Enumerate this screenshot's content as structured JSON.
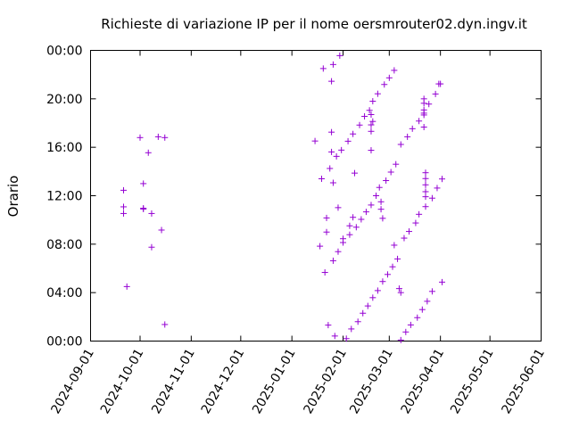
{
  "chart_data": {
    "type": "scatter",
    "title": "Richieste di variazione IP per il nome oersmrouter02.dyn.ingv.it",
    "xlabel": "",
    "ylabel": "Orario",
    "x_ticks": [
      "2024-09-01",
      "2024-10-01",
      "2024-11-01",
      "2024-12-01",
      "2025-01-01",
      "2025-02-01",
      "2025-03-01",
      "2025-04-01",
      "2025-05-01",
      "2025-06-01"
    ],
    "y_ticks": [
      "00:00",
      "04:00",
      "08:00",
      "12:00",
      "16:00",
      "20:00",
      "00:00"
    ],
    "xlim": [
      "2024-09-01",
      "2025-06-01"
    ],
    "ylim_hours": [
      0,
      24
    ],
    "marker": "+",
    "grid": false,
    "color": "#9400d3",
    "series": [
      {
        "points": [
          [
            "2024-09-21",
            "12:27"
          ],
          [
            "2024-09-21",
            "11:05"
          ],
          [
            "2024-09-21",
            "10:32"
          ],
          [
            "2024-09-23",
            "04:30"
          ],
          [
            "2024-10-01",
            "16:48"
          ],
          [
            "2024-10-03",
            "13:00"
          ],
          [
            "2024-10-03",
            "10:54"
          ],
          [
            "2024-10-03",
            "10:58"
          ],
          [
            "2024-10-06",
            "15:33"
          ],
          [
            "2024-10-08",
            "10:32"
          ],
          [
            "2024-10-08",
            "07:45"
          ],
          [
            "2024-10-12",
            "16:52"
          ],
          [
            "2024-10-14",
            "09:10"
          ],
          [
            "2024-10-16",
            "01:22"
          ],
          [
            "2024-10-16",
            "16:48"
          ],
          [
            "2025-01-15",
            "16:31"
          ],
          [
            "2025-01-18",
            "07:50"
          ],
          [
            "2025-01-19",
            "13:24"
          ],
          [
            "2025-01-20",
            "22:30"
          ],
          [
            "2025-01-21",
            "05:40"
          ],
          [
            "2025-01-22",
            "09:00"
          ],
          [
            "2025-01-22",
            "10:10"
          ],
          [
            "2025-01-23",
            "01:19"
          ],
          [
            "2025-01-24",
            "14:15"
          ],
          [
            "2025-01-25",
            "21:27"
          ],
          [
            "2025-01-25",
            "17:15"
          ],
          [
            "2025-01-25",
            "15:37"
          ],
          [
            "2025-01-26",
            "13:04"
          ],
          [
            "2025-01-26",
            "06:38"
          ],
          [
            "2025-01-26",
            "22:50"
          ],
          [
            "2025-01-27",
            "00:25"
          ],
          [
            "2025-01-28",
            "15:15"
          ],
          [
            "2025-01-29",
            "11:01"
          ],
          [
            "2025-01-29",
            "07:23"
          ],
          [
            "2025-01-30",
            "23:34"
          ],
          [
            "2025-01-31",
            "15:46"
          ],
          [
            "2025-02-01",
            "08:27"
          ],
          [
            "2025-02-01",
            "08:08"
          ],
          [
            "2025-02-03",
            "00:12"
          ],
          [
            "2025-02-04",
            "16:30"
          ],
          [
            "2025-02-05",
            "08:47"
          ],
          [
            "2025-02-05",
            "09:31"
          ],
          [
            "2025-02-06",
            "01:00"
          ],
          [
            "2025-02-07",
            "17:06"
          ],
          [
            "2025-02-07",
            "10:13"
          ],
          [
            "2025-02-08",
            "13:52"
          ],
          [
            "2025-02-09",
            "09:24"
          ],
          [
            "2025-02-10",
            "01:36"
          ],
          [
            "2025-02-11",
            "17:50"
          ],
          [
            "2025-02-12",
            "10:03"
          ],
          [
            "2025-02-13",
            "02:18"
          ],
          [
            "2025-02-14",
            "18:33"
          ],
          [
            "2025-02-15",
            "10:40"
          ],
          [
            "2025-02-16",
            "02:54"
          ],
          [
            "2025-02-17",
            "19:03"
          ],
          [
            "2025-02-18",
            "11:14"
          ],
          [
            "2025-02-18",
            "18:42"
          ],
          [
            "2025-02-18",
            "17:51"
          ],
          [
            "2025-02-18",
            "17:19"
          ],
          [
            "2025-02-18",
            "15:45"
          ],
          [
            "2025-02-19",
            "18:08"
          ],
          [
            "2025-02-19",
            "19:48"
          ],
          [
            "2025-02-19",
            "03:35"
          ],
          [
            "2025-02-21",
            "12:00"
          ],
          [
            "2025-02-22",
            "04:10"
          ],
          [
            "2025-02-22",
            "20:25"
          ],
          [
            "2025-02-23",
            "12:41"
          ],
          [
            "2025-02-24",
            "11:30"
          ],
          [
            "2025-02-24",
            "10:53"
          ],
          [
            "2025-02-25",
            "10:08"
          ],
          [
            "2025-02-25",
            "04:55"
          ],
          [
            "2025-02-26",
            "21:11"
          ],
          [
            "2025-02-27",
            "13:15"
          ],
          [
            "2025-02-28",
            "05:30"
          ],
          [
            "2025-03-01",
            "21:44"
          ],
          [
            "2025-03-02",
            "13:57"
          ],
          [
            "2025-03-03",
            "06:08"
          ],
          [
            "2025-03-04",
            "22:21"
          ],
          [
            "2025-03-04",
            "07:55"
          ],
          [
            "2025-03-05",
            "14:36"
          ],
          [
            "2025-03-06",
            "06:47"
          ],
          [
            "2025-03-07",
            "04:20"
          ],
          [
            "2025-03-08",
            "04:00"
          ],
          [
            "2025-03-08",
            "16:14"
          ],
          [
            "2025-03-08",
            "00:05"
          ],
          [
            "2025-03-10",
            "08:30"
          ],
          [
            "2025-03-11",
            "00:45"
          ],
          [
            "2025-03-12",
            "16:52"
          ],
          [
            "2025-03-13",
            "09:03"
          ],
          [
            "2025-03-14",
            "01:20"
          ],
          [
            "2025-03-15",
            "17:32"
          ],
          [
            "2025-03-17",
            "09:45"
          ],
          [
            "2025-03-18",
            "01:56"
          ],
          [
            "2025-03-19",
            "10:28"
          ],
          [
            "2025-03-19",
            "18:10"
          ],
          [
            "2025-03-21",
            "02:36"
          ],
          [
            "2025-03-22",
            "18:49"
          ],
          [
            "2025-03-22",
            "17:40"
          ],
          [
            "2025-03-22",
            "20:00"
          ],
          [
            "2025-03-22",
            "19:38"
          ],
          [
            "2025-03-22",
            "19:05"
          ],
          [
            "2025-03-22",
            "18:40"
          ],
          [
            "2025-03-23",
            "13:54"
          ],
          [
            "2025-03-23",
            "13:25"
          ],
          [
            "2025-03-23",
            "12:54"
          ],
          [
            "2025-03-23",
            "12:20"
          ],
          [
            "2025-03-23",
            "11:55"
          ],
          [
            "2025-03-23",
            "11:06"
          ],
          [
            "2025-03-24",
            "03:17"
          ],
          [
            "2025-03-25",
            "19:34"
          ],
          [
            "2025-03-27",
            "11:48"
          ],
          [
            "2025-03-27",
            "04:06"
          ],
          [
            "2025-03-29",
            "20:24"
          ],
          [
            "2025-03-30",
            "12:38"
          ],
          [
            "2025-03-31",
            "21:14"
          ],
          [
            "2025-04-01",
            "21:14"
          ],
          [
            "2025-04-02",
            "13:23"
          ],
          [
            "2025-04-02",
            "04:52"
          ]
        ]
      }
    ]
  }
}
